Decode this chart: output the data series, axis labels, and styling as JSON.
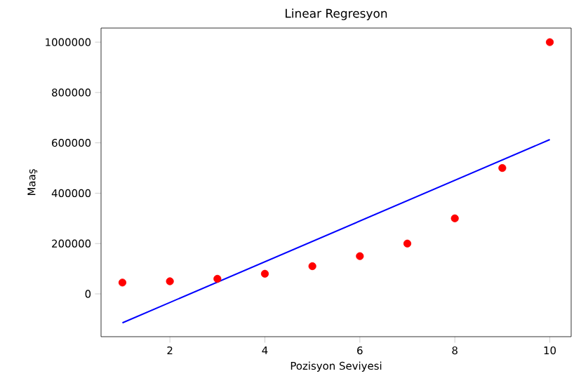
{
  "chart_data": {
    "type": "scatter",
    "title": "Linear Regresyon",
    "xlabel": "Pozisyon Seviyesi",
    "ylabel": "Maaş",
    "xlim": [
      0.55,
      10.45
    ],
    "ylim": [
      -170000,
      1056000
    ],
    "xticks": [
      2,
      4,
      6,
      8,
      10
    ],
    "yticks": [
      0,
      200000,
      400000,
      600000,
      800000,
      1000000
    ],
    "grid": false,
    "series": [
      {
        "marker": "circle",
        "color": "#ff0000",
        "x": [
          1,
          2,
          3,
          4,
          5,
          6,
          7,
          8,
          9,
          10
        ],
        "values": [
          45000,
          50000,
          60000,
          80000,
          110000,
          150000,
          200000,
          300000,
          500000,
          1000000
        ]
      },
      {
        "type": "line",
        "marker": "none",
        "color": "#0000ff",
        "x": [
          1,
          10
        ],
        "values": [
          -115000,
          613000
        ]
      }
    ]
  }
}
